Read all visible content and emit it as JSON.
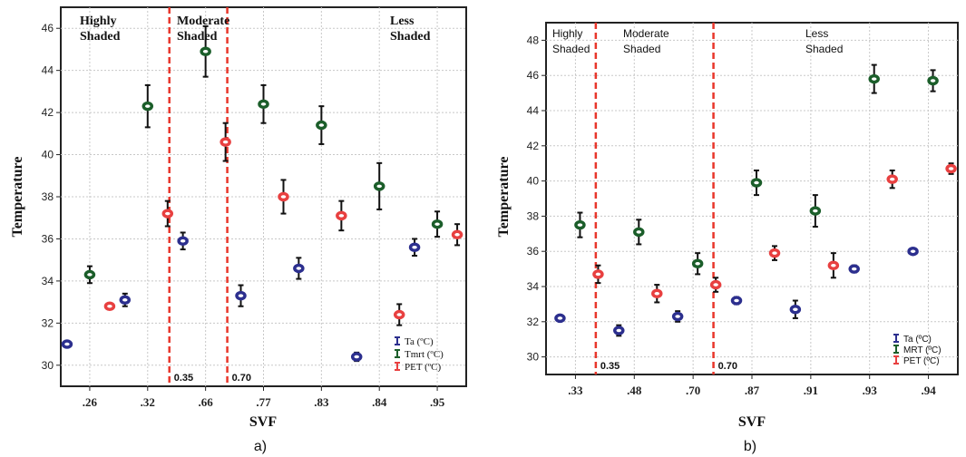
{
  "colors": {
    "Ta": "#2c2f8e",
    "Tmrt": "#1b5e2a",
    "PET": "#e84040",
    "threshold": "#e8362b"
  },
  "chart_data": [
    {
      "type": "scatter",
      "panel_label": "a)",
      "xlabel": "SVF",
      "ylabel": "Temperature",
      "categories": [
        ".26",
        ".32",
        ".66",
        ".77",
        ".83",
        ".84",
        ".95"
      ],
      "ylim": [
        29,
        47
      ],
      "yticks": [
        30,
        32,
        34,
        36,
        38,
        40,
        42,
        44,
        46
      ],
      "grid": true,
      "legend_position": "bottom-right",
      "legend": [
        "Ta (ºC)",
        "Tmrt (ºC)",
        "PET (ºC)"
      ],
      "regions": [
        {
          "label_lines": [
            "Highly",
            "Shaded"
          ]
        },
        {
          "label_lines": [
            "Moderate",
            "Shaded"
          ]
        },
        {
          "label_lines": [
            "Less",
            "Shaded"
          ]
        }
      ],
      "thresholds": [
        {
          "label": "0.35",
          "between": [
            1,
            2
          ]
        },
        {
          "label": "0.70",
          "between": [
            2,
            3
          ]
        }
      ],
      "series": [
        {
          "name": "Ta (ºC)",
          "key": "Ta",
          "points": [
            {
              "cat": 0,
              "y": 31.0,
              "err": 0.1
            },
            {
              "cat": 1,
              "y": 33.1,
              "err": 0.3
            },
            {
              "cat": 2,
              "y": 35.9,
              "err": 0.4
            },
            {
              "cat": 3,
              "y": 33.3,
              "err": 0.5
            },
            {
              "cat": 4,
              "y": 34.6,
              "err": 0.5
            },
            {
              "cat": 5,
              "y": 30.4,
              "err": 0.2
            },
            {
              "cat": 6,
              "y": 35.6,
              "err": 0.4
            }
          ]
        },
        {
          "name": "Tmrt (ºC)",
          "key": "Tmrt",
          "points": [
            {
              "cat": 0,
              "y": 34.3,
              "err": 0.4
            },
            {
              "cat": 1,
              "y": 42.3,
              "err": 1.0
            },
            {
              "cat": 2,
              "y": 44.9,
              "err": 1.2
            },
            {
              "cat": 3,
              "y": 42.4,
              "err": 0.9
            },
            {
              "cat": 4,
              "y": 41.4,
              "err": 0.9
            },
            {
              "cat": 5,
              "y": 38.5,
              "err": 1.1
            },
            {
              "cat": 6,
              "y": 36.7,
              "err": 0.6
            }
          ]
        },
        {
          "name": "PET (ºC)",
          "key": "PET",
          "points": [
            {
              "cat": 0,
              "y": 32.8,
              "err": 0.1
            },
            {
              "cat": 1,
              "y": 37.2,
              "err": 0.6
            },
            {
              "cat": 2,
              "y": 40.6,
              "err": 0.9
            },
            {
              "cat": 3,
              "y": 38.0,
              "err": 0.8
            },
            {
              "cat": 4,
              "y": 37.1,
              "err": 0.7
            },
            {
              "cat": 5,
              "y": 32.4,
              "err": 0.5
            },
            {
              "cat": 6,
              "y": 36.2,
              "err": 0.5
            }
          ]
        }
      ]
    },
    {
      "type": "scatter",
      "panel_label": "b)",
      "xlabel": "SVF",
      "ylabel": "Temperature",
      "categories": [
        ".33",
        ".48",
        ".70",
        ".87",
        ".91",
        ".93",
        ".94"
      ],
      "ylim": [
        29,
        49
      ],
      "yticks": [
        30,
        32,
        34,
        36,
        38,
        40,
        42,
        44,
        46,
        48
      ],
      "grid": true,
      "legend_position": "bottom-right",
      "legend": [
        "Ta (ºC)",
        "MRT (ºC)",
        "PET (ºC)"
      ],
      "regions": [
        {
          "label_lines": [
            "Highly",
            "Shaded"
          ]
        },
        {
          "label_lines": [
            "Moderate",
            "Shaded"
          ]
        },
        {
          "label_lines": [
            "Less",
            "Shaded"
          ]
        }
      ],
      "thresholds": [
        {
          "label": "0.35",
          "between": [
            0,
            1
          ]
        },
        {
          "label": "0.70",
          "between": [
            2,
            3
          ]
        }
      ],
      "series": [
        {
          "name": "Ta (ºC)",
          "key": "Ta",
          "points": [
            {
              "cat": 0,
              "y": 32.2,
              "err": 0.1
            },
            {
              "cat": 1,
              "y": 31.5,
              "err": 0.3
            },
            {
              "cat": 2,
              "y": 32.3,
              "err": 0.3
            },
            {
              "cat": 3,
              "y": 33.2,
              "err": 0.2
            },
            {
              "cat": 4,
              "y": 32.7,
              "err": 0.5
            },
            {
              "cat": 5,
              "y": 35.0,
              "err": 0.2
            },
            {
              "cat": 6,
              "y": 36.0,
              "err": 0.1
            }
          ]
        },
        {
          "name": "MRT (ºC)",
          "key": "Tmrt",
          "points": [
            {
              "cat": 0,
              "y": 37.5,
              "err": 0.7
            },
            {
              "cat": 1,
              "y": 37.1,
              "err": 0.7
            },
            {
              "cat": 2,
              "y": 35.3,
              "err": 0.6
            },
            {
              "cat": 3,
              "y": 39.9,
              "err": 0.7
            },
            {
              "cat": 4,
              "y": 38.3,
              "err": 0.9
            },
            {
              "cat": 5,
              "y": 45.8,
              "err": 0.8
            },
            {
              "cat": 6,
              "y": 45.7,
              "err": 0.6
            }
          ]
        },
        {
          "name": "PET (ºC)",
          "key": "PET",
          "points": [
            {
              "cat": 0,
              "y": 34.7,
              "err": 0.5
            },
            {
              "cat": 1,
              "y": 33.6,
              "err": 0.5
            },
            {
              "cat": 2,
              "y": 34.1,
              "err": 0.4
            },
            {
              "cat": 3,
              "y": 35.9,
              "err": 0.4
            },
            {
              "cat": 4,
              "y": 35.2,
              "err": 0.7
            },
            {
              "cat": 5,
              "y": 40.1,
              "err": 0.5
            },
            {
              "cat": 6,
              "y": 40.7,
              "err": 0.3
            }
          ]
        }
      ]
    }
  ]
}
